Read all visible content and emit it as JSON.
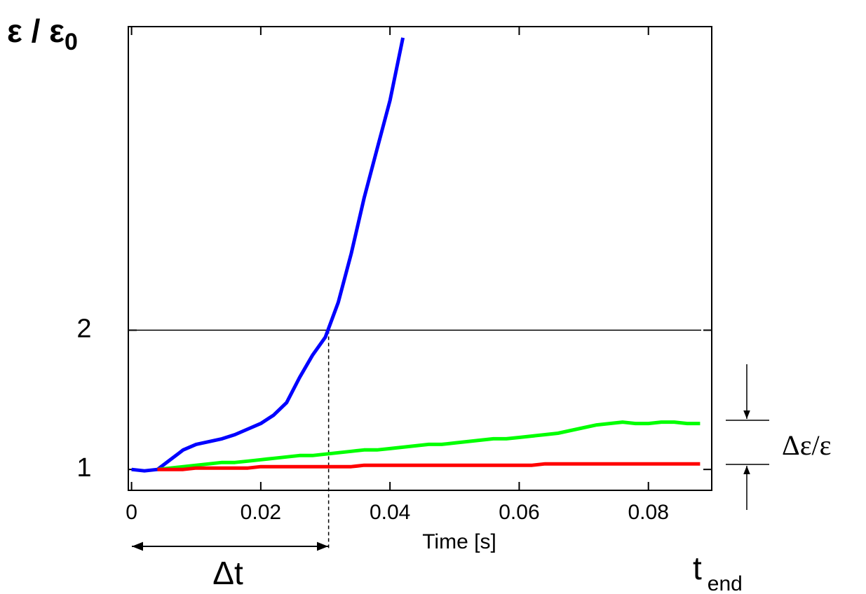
{
  "chart_data": {
    "type": "line",
    "y_label": "ε / ε",
    "y_label_sub": "0",
    "x_label": "Time [s]",
    "annotations": {
      "delta_t": "Δt",
      "t_end": "t",
      "t_end_sub": "end",
      "delta_eps": "Δε/ε"
    },
    "hline": 2,
    "vline": 0.0305,
    "x": [
      0,
      0.002,
      0.004,
      0.006,
      0.008,
      0.01,
      0.012,
      0.014,
      0.016,
      0.018,
      0.02,
      0.022,
      0.024,
      0.026,
      0.028,
      0.03,
      0.032,
      0.034,
      0.036,
      0.038,
      0.04,
      0.042,
      0.044,
      0.046,
      0.048,
      0.05,
      0.052,
      0.054,
      0.056,
      0.058,
      0.06,
      0.062,
      0.064,
      0.066,
      0.068,
      0.07,
      0.072,
      0.074,
      0.076,
      0.078,
      0.08,
      0.082,
      0.084,
      0.086,
      0.088
    ],
    "series": [
      {
        "color": "#0000ff",
        "values": [
          1.0,
          0.99,
          1.0,
          1.07,
          1.14,
          1.18,
          1.2,
          1.22,
          1.25,
          1.29,
          1.33,
          1.39,
          1.48,
          1.66,
          1.82,
          1.95,
          2.2,
          2.55,
          2.95,
          3.3,
          3.65,
          4.1,
          null,
          null,
          null,
          null,
          null,
          null,
          null,
          null,
          null,
          null,
          null,
          null,
          null,
          null,
          null,
          null,
          null,
          null,
          null,
          null,
          null,
          null,
          null
        ]
      },
      {
        "color": "#00ff00",
        "values": [
          null,
          null,
          1.0,
          1.01,
          1.02,
          1.03,
          1.04,
          1.05,
          1.05,
          1.06,
          1.07,
          1.08,
          1.09,
          1.1,
          1.1,
          1.11,
          1.12,
          1.13,
          1.14,
          1.14,
          1.15,
          1.16,
          1.17,
          1.18,
          1.18,
          1.19,
          1.2,
          1.21,
          1.22,
          1.22,
          1.23,
          1.24,
          1.25,
          1.26,
          1.28,
          1.3,
          1.32,
          1.33,
          1.34,
          1.33,
          1.33,
          1.34,
          1.34,
          1.33,
          1.33
        ]
      },
      {
        "color": "#ff0000",
        "values": [
          null,
          null,
          1.0,
          1.0,
          1.0,
          1.01,
          1.01,
          1.01,
          1.01,
          1.01,
          1.02,
          1.02,
          1.02,
          1.02,
          1.02,
          1.02,
          1.02,
          1.02,
          1.03,
          1.03,
          1.03,
          1.03,
          1.03,
          1.03,
          1.03,
          1.03,
          1.03,
          1.03,
          1.03,
          1.03,
          1.03,
          1.03,
          1.04,
          1.04,
          1.04,
          1.04,
          1.04,
          1.04,
          1.04,
          1.04,
          1.04,
          1.04,
          1.04,
          1.04,
          1.04
        ]
      }
    ],
    "xlim": [
      -0.0005,
      0.0898
    ],
    "ylim": [
      0.85,
      4.18
    ],
    "xticks": [
      0,
      0.02,
      0.04,
      0.06,
      0.08
    ],
    "yticks": [
      1,
      2
    ]
  }
}
